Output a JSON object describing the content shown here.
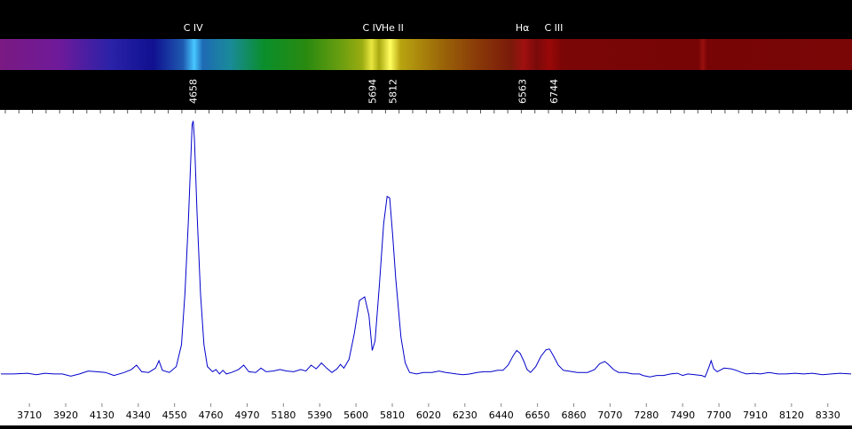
{
  "chart_data": {
    "type": "line",
    "title": "",
    "xlabel": "",
    "ylabel": "",
    "x_ticks": [
      3710,
      3920,
      4130,
      4340,
      4550,
      4760,
      4970,
      5180,
      5390,
      5600,
      5810,
      6020,
      6230,
      6440,
      6650,
      6860,
      7070,
      7280,
      7490,
      7700,
      7910,
      8120,
      8330
    ],
    "xlim": [
      3540,
      8470
    ],
    "ylim": [
      0.6,
      4.6
    ],
    "line_color": "#0000cc",
    "grid": false,
    "annotations": [
      {
        "name": "C IV",
        "wavelength": 4658
      },
      {
        "name": "C IV",
        "wavelength": 5694
      },
      {
        "name": "He II",
        "wavelength": 5812
      },
      {
        "name": "Hα",
        "wavelength": 6563
      },
      {
        "name": "C III",
        "wavelength": 6744
      }
    ],
    "series": [
      {
        "points": [
          [
            3545,
            1.0
          ],
          [
            3620,
            1.0
          ],
          [
            3700,
            1.01
          ],
          [
            3750,
            0.99
          ],
          [
            3800,
            1.01
          ],
          [
            3850,
            1.0
          ],
          [
            3900,
            1.0
          ],
          [
            3950,
            0.97
          ],
          [
            4000,
            1.0
          ],
          [
            4050,
            1.04
          ],
          [
            4100,
            1.03
          ],
          [
            4150,
            1.02
          ],
          [
            4200,
            0.98
          ],
          [
            4260,
            1.02
          ],
          [
            4300,
            1.06
          ],
          [
            4330,
            1.12
          ],
          [
            4360,
            1.03
          ],
          [
            4400,
            1.02
          ],
          [
            4440,
            1.08
          ],
          [
            4460,
            1.18
          ],
          [
            4480,
            1.05
          ],
          [
            4520,
            1.02
          ],
          [
            4560,
            1.1
          ],
          [
            4590,
            1.4
          ],
          [
            4610,
            2.1
          ],
          [
            4630,
            3.1
          ],
          [
            4645,
            4.0
          ],
          [
            4652,
            4.4
          ],
          [
            4658,
            4.45
          ],
          [
            4665,
            4.2
          ],
          [
            4680,
            3.2
          ],
          [
            4700,
            2.1
          ],
          [
            4720,
            1.4
          ],
          [
            4740,
            1.1
          ],
          [
            4770,
            1.03
          ],
          [
            4790,
            1.06
          ],
          [
            4810,
            1.0
          ],
          [
            4830,
            1.05
          ],
          [
            4850,
            1.0
          ],
          [
            4880,
            1.02
          ],
          [
            4920,
            1.06
          ],
          [
            4950,
            1.12
          ],
          [
            4980,
            1.03
          ],
          [
            5020,
            1.02
          ],
          [
            5050,
            1.08
          ],
          [
            5080,
            1.03
          ],
          [
            5120,
            1.04
          ],
          [
            5160,
            1.06
          ],
          [
            5200,
            1.04
          ],
          [
            5240,
            1.03
          ],
          [
            5280,
            1.06
          ],
          [
            5310,
            1.04
          ],
          [
            5340,
            1.12
          ],
          [
            5370,
            1.07
          ],
          [
            5400,
            1.15
          ],
          [
            5430,
            1.08
          ],
          [
            5460,
            1.02
          ],
          [
            5490,
            1.07
          ],
          [
            5510,
            1.13
          ],
          [
            5530,
            1.08
          ],
          [
            5560,
            1.2
          ],
          [
            5590,
            1.55
          ],
          [
            5620,
            2.0
          ],
          [
            5650,
            2.05
          ],
          [
            5675,
            1.8
          ],
          [
            5694,
            1.32
          ],
          [
            5710,
            1.45
          ],
          [
            5735,
            2.2
          ],
          [
            5760,
            3.05
          ],
          [
            5780,
            3.42
          ],
          [
            5795,
            3.4
          ],
          [
            5812,
            2.9
          ],
          [
            5830,
            2.3
          ],
          [
            5860,
            1.5
          ],
          [
            5885,
            1.15
          ],
          [
            5910,
            1.02
          ],
          [
            5950,
            1.0
          ],
          [
            5990,
            1.02
          ],
          [
            6040,
            1.02
          ],
          [
            6080,
            1.04
          ],
          [
            6120,
            1.02
          ],
          [
            6180,
            1.0
          ],
          [
            6220,
            0.99
          ],
          [
            6260,
            1.0
          ],
          [
            6300,
            1.02
          ],
          [
            6340,
            1.03
          ],
          [
            6380,
            1.03
          ],
          [
            6420,
            1.05
          ],
          [
            6450,
            1.05
          ],
          [
            6480,
            1.12
          ],
          [
            6510,
            1.25
          ],
          [
            6530,
            1.32
          ],
          [
            6550,
            1.28
          ],
          [
            6570,
            1.18
          ],
          [
            6590,
            1.06
          ],
          [
            6610,
            1.02
          ],
          [
            6640,
            1.1
          ],
          [
            6670,
            1.24
          ],
          [
            6700,
            1.33
          ],
          [
            6720,
            1.34
          ],
          [
            6744,
            1.24
          ],
          [
            6770,
            1.12
          ],
          [
            6800,
            1.05
          ],
          [
            6830,
            1.04
          ],
          [
            6880,
            1.02
          ],
          [
            6940,
            1.02
          ],
          [
            6980,
            1.06
          ],
          [
            7010,
            1.14
          ],
          [
            7040,
            1.17
          ],
          [
            7060,
            1.13
          ],
          [
            7090,
            1.06
          ],
          [
            7120,
            1.02
          ],
          [
            7160,
            1.02
          ],
          [
            7200,
            1.0
          ],
          [
            7240,
            1.0
          ],
          [
            7260,
            0.98
          ],
          [
            7300,
            0.96
          ],
          [
            7340,
            0.98
          ],
          [
            7380,
            0.98
          ],
          [
            7420,
            1.0
          ],
          [
            7460,
            1.01
          ],
          [
            7490,
            0.98
          ],
          [
            7520,
            1.0
          ],
          [
            7560,
            0.99
          ],
          [
            7600,
            0.98
          ],
          [
            7620,
            0.96
          ],
          [
            7640,
            1.08
          ],
          [
            7655,
            1.18
          ],
          [
            7670,
            1.07
          ],
          [
            7690,
            1.03
          ],
          [
            7730,
            1.08
          ],
          [
            7770,
            1.07
          ],
          [
            7800,
            1.05
          ],
          [
            7830,
            1.02
          ],
          [
            7860,
            1.0
          ],
          [
            7900,
            1.01
          ],
          [
            7940,
            1.0
          ],
          [
            7990,
            1.02
          ],
          [
            8040,
            1.0
          ],
          [
            8090,
            1.0
          ],
          [
            8140,
            1.01
          ],
          [
            8190,
            1.0
          ],
          [
            8240,
            1.01
          ],
          [
            8300,
            0.99
          ],
          [
            8350,
            1.0
          ],
          [
            8400,
            1.01
          ],
          [
            8465,
            1.0
          ]
        ]
      }
    ]
  }
}
